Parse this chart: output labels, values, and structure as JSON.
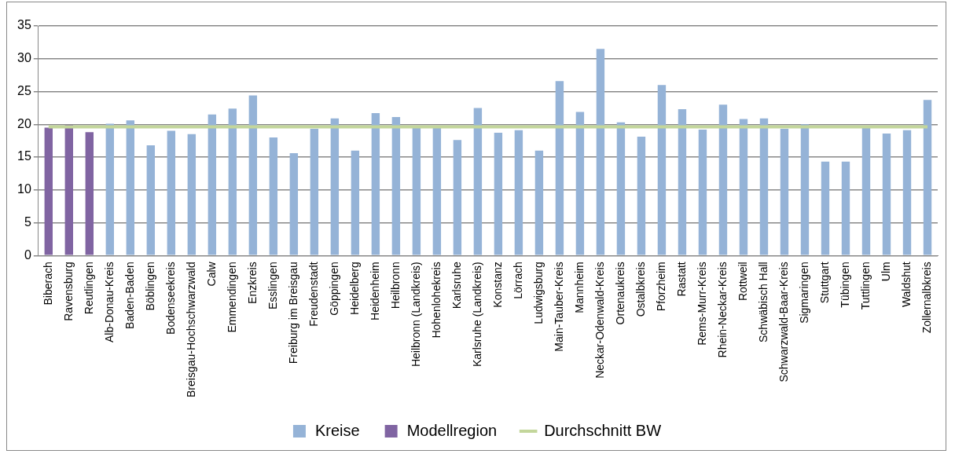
{
  "chart_data": {
    "type": "bar",
    "categories": [
      "Biberach",
      "Ravensburg",
      "Reutlingen",
      "Alb-Donau-Kreis",
      "Baden-Baden",
      "Böblingen",
      "Bodenseekreis",
      "Breisgau-Hochschwarzwald",
      "Calw",
      "Emmendingen",
      "Enzkreis",
      "Esslingen",
      "Freiburg im Breisgau",
      "Freudenstadt",
      "Göppingen",
      "Heidelberg",
      "Heidenheim",
      "Heilbronn",
      "Heilbronn (Landkreis)",
      "Hohenlohekreis",
      "Karlsruhe",
      "Karlsruhe (Landkreis)",
      "Konstanz",
      "Lörrach",
      "Ludwigsburg",
      "Main-Tauber-Kreis",
      "Mannheim",
      "Neckar-Odenwald-Kreis",
      "Ortenaukreis",
      "Ostalbkreis",
      "Pforzheim",
      "Rastatt",
      "Rems-Murr-Kreis",
      "Rhein-Neckar-Kreis",
      "Rottweil",
      "Schwäbisch Hall",
      "Schwarzwald-Baar-Kreis",
      "Sigmaringen",
      "Stuttgart",
      "Tübingen",
      "Tuttlingen",
      "Ulm",
      "Waldshut",
      "Zollernalbkreis"
    ],
    "series": [
      {
        "name": "Kreise",
        "color": "#95b3d7",
        "values": [
          null,
          null,
          null,
          20.1,
          20.6,
          16.8,
          19.0,
          18.5,
          21.5,
          22.4,
          24.4,
          18.0,
          15.6,
          19.3,
          20.9,
          16.0,
          21.7,
          21.1,
          19.5,
          19.5,
          17.6,
          22.5,
          18.7,
          19.1,
          16.0,
          26.6,
          21.9,
          31.5,
          20.3,
          18.1,
          26.0,
          22.3,
          19.2,
          23.0,
          20.8,
          20.9,
          19.3,
          20.0,
          14.3,
          14.3,
          19.6,
          18.6,
          19.1,
          23.7
        ]
      },
      {
        "name": "Modellregion",
        "color": "#8064a2",
        "values": [
          19.5,
          19.9,
          18.8,
          null,
          null,
          null,
          null,
          null,
          null,
          null,
          null,
          null,
          null,
          null,
          null,
          null,
          null,
          null,
          null,
          null,
          null,
          null,
          null,
          null,
          null,
          null,
          null,
          null,
          null,
          null,
          null,
          null,
          null,
          null,
          null,
          null,
          null,
          null,
          null,
          null,
          null,
          null,
          null,
          null
        ]
      },
      {
        "name": "Durchschnitt BW",
        "type": "line",
        "color": "#c3d69b",
        "values": [
          19.6,
          19.6,
          19.6,
          19.6,
          19.6,
          19.6,
          19.6,
          19.6,
          19.6,
          19.6,
          19.6,
          19.6,
          19.6,
          19.6,
          19.6,
          19.6,
          19.6,
          19.6,
          19.6,
          19.6,
          19.6,
          19.6,
          19.6,
          19.6,
          19.6,
          19.6,
          19.6,
          19.6,
          19.6,
          19.6,
          19.6,
          19.6,
          19.6,
          19.6,
          19.6,
          19.6,
          19.6,
          19.6,
          19.6,
          19.6,
          19.6,
          19.6,
          19.6,
          19.6
        ]
      }
    ],
    "ylim": [
      0,
      35
    ],
    "yticks": [
      0,
      5,
      10,
      15,
      20,
      25,
      30,
      35
    ],
    "grid": "y",
    "legend": "bottom",
    "marker": "none"
  }
}
